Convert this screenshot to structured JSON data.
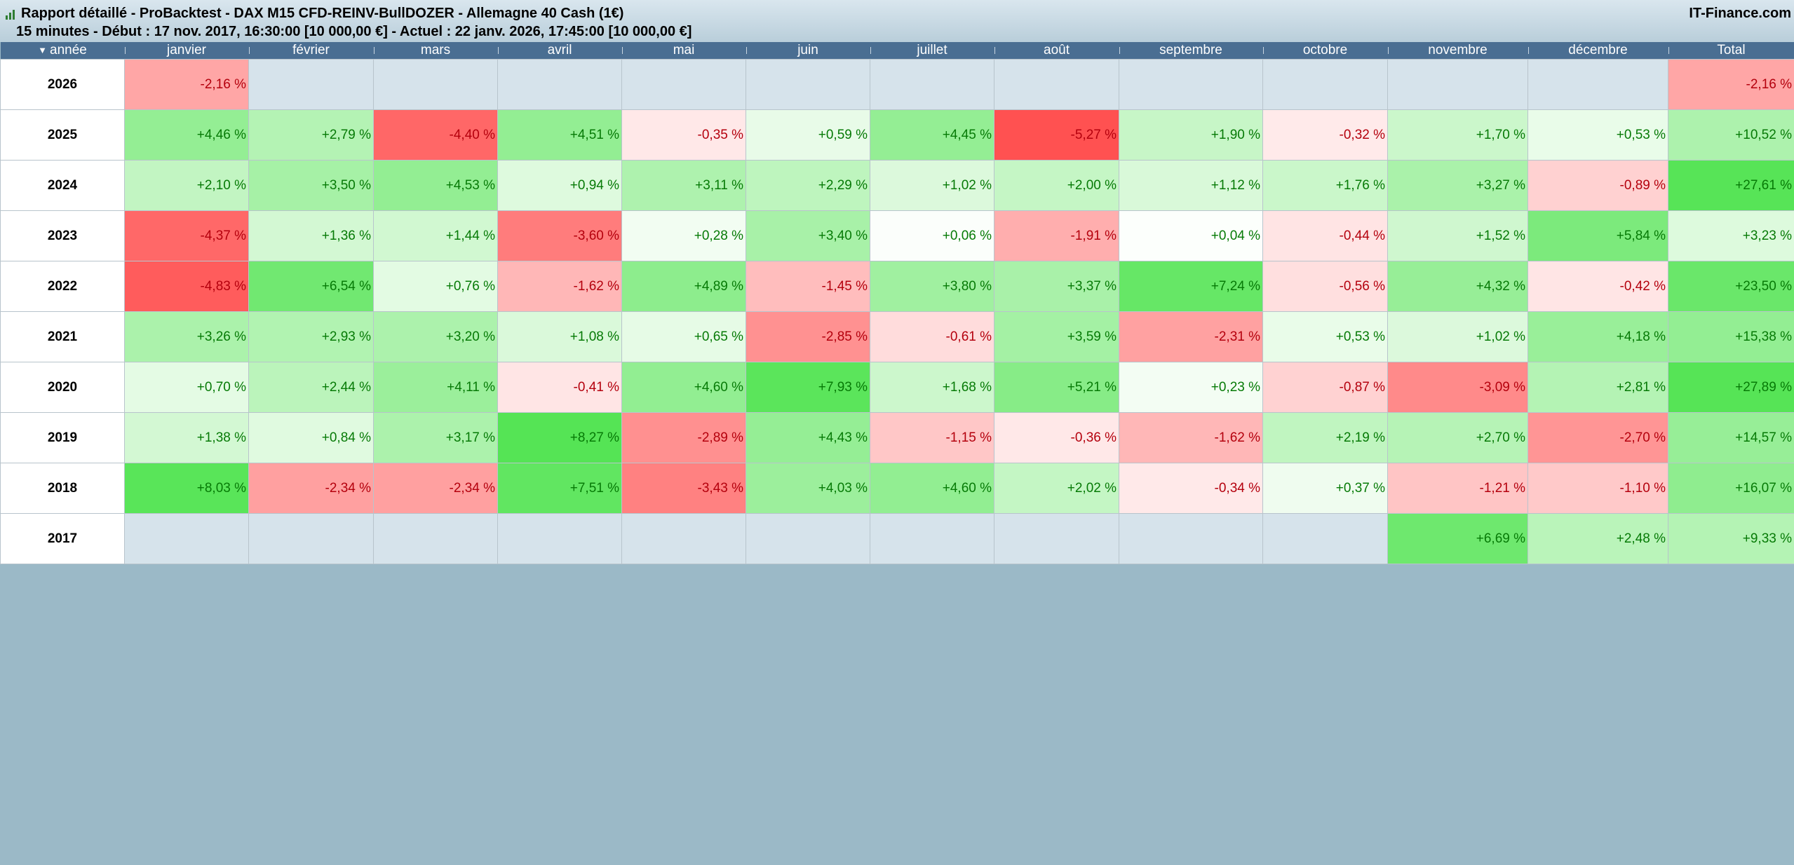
{
  "header": {
    "title": "Rapport détaillé - ProBacktest - DAX M15 CFD-REINV-BullDOZER - Allemagne 40 Cash (1€)",
    "subtitle": "15 minutes - Début : 17 nov. 2017, 16:30:00 [10 000,00 €] - Actuel : 22 janv. 2026, 17:45:00 [10 000,00 €]",
    "brand": "IT-Finance.com",
    "icon": "mini-chart-icon"
  },
  "columns": [
    "année",
    "janvier",
    "février",
    "mars",
    "avril",
    "mai",
    "juin",
    "juillet",
    "août",
    "septembre",
    "octobre",
    "novembre",
    "décembre",
    "Total"
  ],
  "sort_indicator": "▼",
  "colors": {
    "header_bg": "#4a6e92",
    "empty_cell": "#d6e3eb",
    "positive_text": "#067a06",
    "negative_text": "#b4000d",
    "page_bg": "#9bb9c7"
  },
  "rows": [
    {
      "year": "2026",
      "cells": [
        "-2,16 %",
        "",
        "",
        "",
        "",
        "",
        "",
        "",
        "",
        "",
        "",
        "",
        "-2,16 %"
      ]
    },
    {
      "year": "2025",
      "cells": [
        "+4,46 %",
        "+2,79 %",
        "-4,40 %",
        "+4,51 %",
        "-0,35 %",
        "+0,59 %",
        "+4,45 %",
        "-5,27 %",
        "+1,90 %",
        "-0,32 %",
        "+1,70 %",
        "+0,53 %",
        "+10,52 %"
      ]
    },
    {
      "year": "2024",
      "cells": [
        "+2,10 %",
        "+3,50 %",
        "+4,53 %",
        "+0,94 %",
        "+3,11 %",
        "+2,29 %",
        "+1,02 %",
        "+2,00 %",
        "+1,12 %",
        "+1,76 %",
        "+3,27 %",
        "-0,89 %",
        "+27,61 %"
      ]
    },
    {
      "year": "2023",
      "cells": [
        "-4,37 %",
        "+1,36 %",
        "+1,44 %",
        "-3,60 %",
        "+0,28 %",
        "+3,40 %",
        "+0,06 %",
        "-1,91 %",
        "+0,04 %",
        "-0,44 %",
        "+1,52 %",
        "+5,84 %",
        "+3,23 %"
      ]
    },
    {
      "year": "2022",
      "cells": [
        "-4,83 %",
        "+6,54 %",
        "+0,76 %",
        "-1,62 %",
        "+4,89 %",
        "-1,45 %",
        "+3,80 %",
        "+3,37 %",
        "+7,24 %",
        "-0,56 %",
        "+4,32 %",
        "-0,42 %",
        "+23,50 %"
      ]
    },
    {
      "year": "2021",
      "cells": [
        "+3,26 %",
        "+2,93 %",
        "+3,20 %",
        "+1,08 %",
        "+0,65 %",
        "-2,85 %",
        "-0,61 %",
        "+3,59 %",
        "-2,31 %",
        "+0,53 %",
        "+1,02 %",
        "+4,18 %",
        "+15,38 %"
      ]
    },
    {
      "year": "2020",
      "cells": [
        "+0,70 %",
        "+2,44 %",
        "+4,11 %",
        "-0,41 %",
        "+4,60 %",
        "+7,93 %",
        "+1,68 %",
        "+5,21 %",
        "+0,23 %",
        "-0,87 %",
        "-3,09 %",
        "+2,81 %",
        "+27,89 %"
      ]
    },
    {
      "year": "2019",
      "cells": [
        "+1,38 %",
        "+0,84 %",
        "+3,17 %",
        "+8,27 %",
        "-2,89 %",
        "+4,43 %",
        "-1,15 %",
        "-0,36 %",
        "-1,62 %",
        "+2,19 %",
        "+2,70 %",
        "-2,70 %",
        "+14,57 %"
      ]
    },
    {
      "year": "2018",
      "cells": [
        "+8,03 %",
        "-2,34 %",
        "-2,34 %",
        "+7,51 %",
        "-3,43 %",
        "+4,03 %",
        "+4,60 %",
        "+2,02 %",
        "-0,34 %",
        "+0,37 %",
        "-1,21 %",
        "-1,10 %",
        "+16,07 %"
      ]
    },
    {
      "year": "2017",
      "cells": [
        "",
        "",
        "",
        "",
        "",
        "",
        "",
        "",
        "",
        "",
        "+6,69 %",
        "+2,48 %",
        "+9,33 %"
      ]
    }
  ]
}
